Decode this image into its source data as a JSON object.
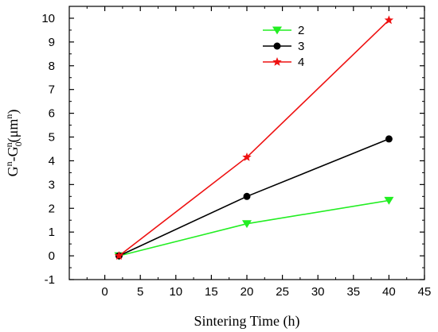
{
  "chart_data": {
    "type": "line",
    "xlabel": "Sintering Time (h)",
    "ylabel": {
      "parts": [
        "G",
        "n",
        "-G",
        "0",
        "n",
        "(μm",
        "n",
        ")"
      ]
    },
    "xlim": [
      -5,
      45
    ],
    "ylim": [
      -1,
      10.5
    ],
    "x_ticks": [
      "0",
      "5",
      "10",
      "15",
      "20",
      "25",
      "30",
      "35",
      "40",
      "45"
    ],
    "y_ticks": [
      "-1",
      "0",
      "1",
      "2",
      "3",
      "4",
      "5",
      "6",
      "7",
      "8",
      "9",
      "10"
    ],
    "x": [
      2,
      20,
      40
    ],
    "legend_position": "top-center",
    "series": [
      {
        "name": "2",
        "values": [
          0,
          1.35,
          2.33
        ],
        "color": "#22ee22",
        "marker": "triangle-down"
      },
      {
        "name": "3",
        "values": [
          0,
          2.5,
          4.92
        ],
        "color": "#000000",
        "marker": "circle"
      },
      {
        "name": "4",
        "values": [
          0,
          4.15,
          9.92
        ],
        "color": "#ee1111",
        "marker": "star"
      }
    ]
  }
}
